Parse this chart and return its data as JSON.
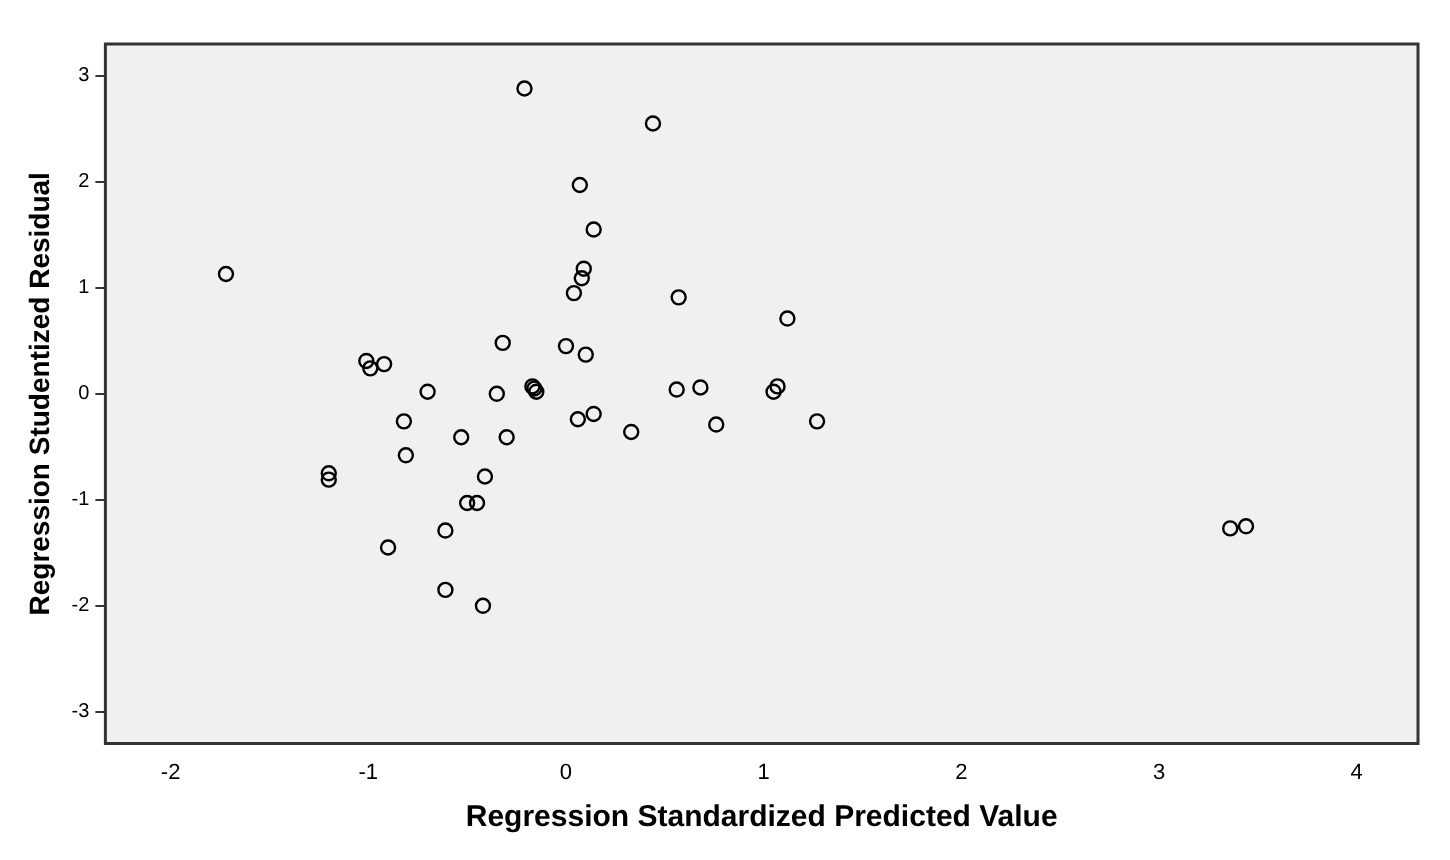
{
  "chart_data": {
    "type": "scatter",
    "xlabel": "Regression Standardized Predicted Value",
    "ylabel": "Regression Studentized Residual",
    "x": [
      -1.72,
      -0.21,
      0.44,
      0.07,
      0.14,
      0.09,
      0.08,
      0.04,
      0.57,
      1.12,
      -0.32,
      0.0,
      0.1,
      -1.01,
      -0.99,
      -0.92,
      -0.7,
      -0.35,
      -0.17,
      -0.16,
      -0.15,
      0.56,
      0.68,
      1.05,
      1.07,
      -0.82,
      0.06,
      0.14,
      0.33,
      0.76,
      1.27,
      -0.53,
      -0.3,
      -0.81,
      -1.2,
      -1.2,
      -0.41,
      -0.5,
      -0.45,
      -0.61,
      -0.9,
      -0.61,
      -0.42,
      3.36,
      3.44
    ],
    "values": [
      1.13,
      2.88,
      2.55,
      1.97,
      1.55,
      1.18,
      1.09,
      0.95,
      0.91,
      0.71,
      0.48,
      0.45,
      0.37,
      0.31,
      0.24,
      0.28,
      0.02,
      0.0,
      0.07,
      0.05,
      0.02,
      0.04,
      0.06,
      0.02,
      0.07,
      -0.26,
      -0.24,
      -0.19,
      -0.36,
      -0.29,
      -0.26,
      -0.41,
      -0.41,
      -0.58,
      -0.75,
      -0.81,
      -0.78,
      -1.03,
      -1.03,
      -1.29,
      -1.45,
      -1.85,
      -2.0,
      -1.27,
      -1.25
    ],
    "color": "#000000",
    "marker": "circle",
    "xlim": [
      -2.33,
      4.31
    ],
    "xticks": [
      -2,
      -1,
      0,
      1,
      2,
      3,
      4
    ],
    "ylim": [
      -3.3,
      3.3
    ],
    "yticks": [
      -3,
      -2,
      -1,
      0,
      1,
      2,
      3
    ],
    "grid": false,
    "legend": false
  }
}
